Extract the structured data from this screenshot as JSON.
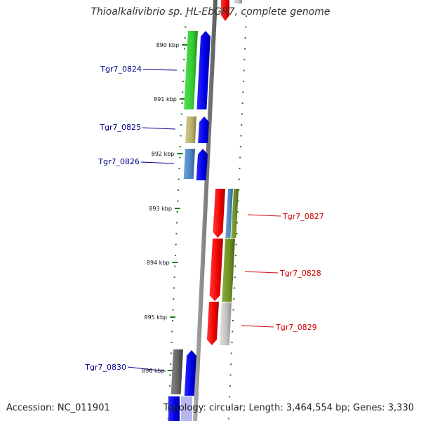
{
  "title": "Thioalkalivibrio sp. HL-EbGR7, complete genome",
  "footer": {
    "accession": "Accession: NC_011901",
    "topology": "Topology: circular; Length: 3,464,554 bp; Genes: 3,330"
  },
  "colors": {
    "forward_label": "#00008b",
    "reverse_label": "#cc0000",
    "tick": "#1a7a1a",
    "backbone": "#808080"
  },
  "kbp_labels": [
    "890 kbp",
    "891 kbp",
    "892 kbp",
    "893 kbp",
    "894 kbp",
    "895 kbp",
    "896 kbp"
  ],
  "genes": [
    {
      "id": "Tgr7_0824",
      "strand": "forward",
      "cog_color": "#33cc33"
    },
    {
      "id": "Tgr7_0825",
      "strand": "forward",
      "cog_color": "#b8b06a"
    },
    {
      "id": "Tgr7_0826",
      "strand": "forward",
      "cog_color": "#4a86c0"
    },
    {
      "id": "Tgr7_0827",
      "strand": "reverse",
      "cog_color": "#6b8e23"
    },
    {
      "id": "Tgr7_0828",
      "strand": "reverse",
      "cog_color": "#6b8e23"
    },
    {
      "id": "Tgr7_0829",
      "strand": "reverse",
      "cog_color": "#c0c0c0"
    },
    {
      "id": "Tgr7_0830",
      "strand": "forward",
      "cog_color": "#606060"
    }
  ]
}
